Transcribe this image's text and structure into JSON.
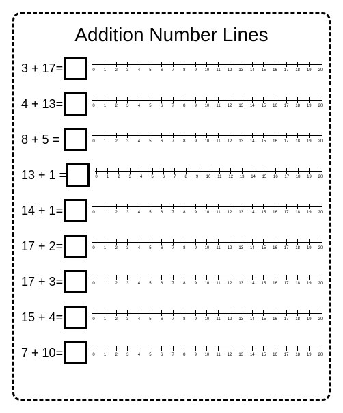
{
  "title": "Addition Number Lines",
  "numberline": {
    "min": 0,
    "max": 20,
    "tick_step": 1,
    "line_color": "#000000",
    "tick_height": 8,
    "label_fontsize": 6,
    "label_color": "#000000"
  },
  "answer_box": {
    "border_width": 3,
    "border_color": "#000000",
    "background_color": "#ffffff",
    "size": 34
  },
  "frame": {
    "border_style": "dashed",
    "border_width": 3,
    "border_color": "#000000",
    "border_radius": 12,
    "background_color": "#ffffff"
  },
  "equation_style": {
    "fontsize": 18,
    "color": "#000000",
    "font_family": "Arial"
  },
  "title_style": {
    "fontsize": 28,
    "color": "#000000",
    "font_family": "Comic Sans MS"
  },
  "problems": [
    {
      "a": 3,
      "b": 17,
      "sep": " + ",
      "eq": "="
    },
    {
      "a": 4,
      "b": 13,
      "sep": " + ",
      "eq": "="
    },
    {
      "a": 8,
      "b": 5,
      "sep": " + ",
      "eq": " ="
    },
    {
      "a": 13,
      "b": 1,
      "sep": " + ",
      "eq": " ="
    },
    {
      "a": 14,
      "b": 1,
      "sep": " + ",
      "eq": "="
    },
    {
      "a": 17,
      "b": 2,
      "sep": " + ",
      "eq": "="
    },
    {
      "a": 17,
      "b": 3,
      "sep": " + ",
      "eq": "="
    },
    {
      "a": 15,
      "b": 4,
      "sep": " + ",
      "eq": "="
    },
    {
      "a": 7,
      "b": 10,
      "sep": " + ",
      "eq": "="
    }
  ]
}
